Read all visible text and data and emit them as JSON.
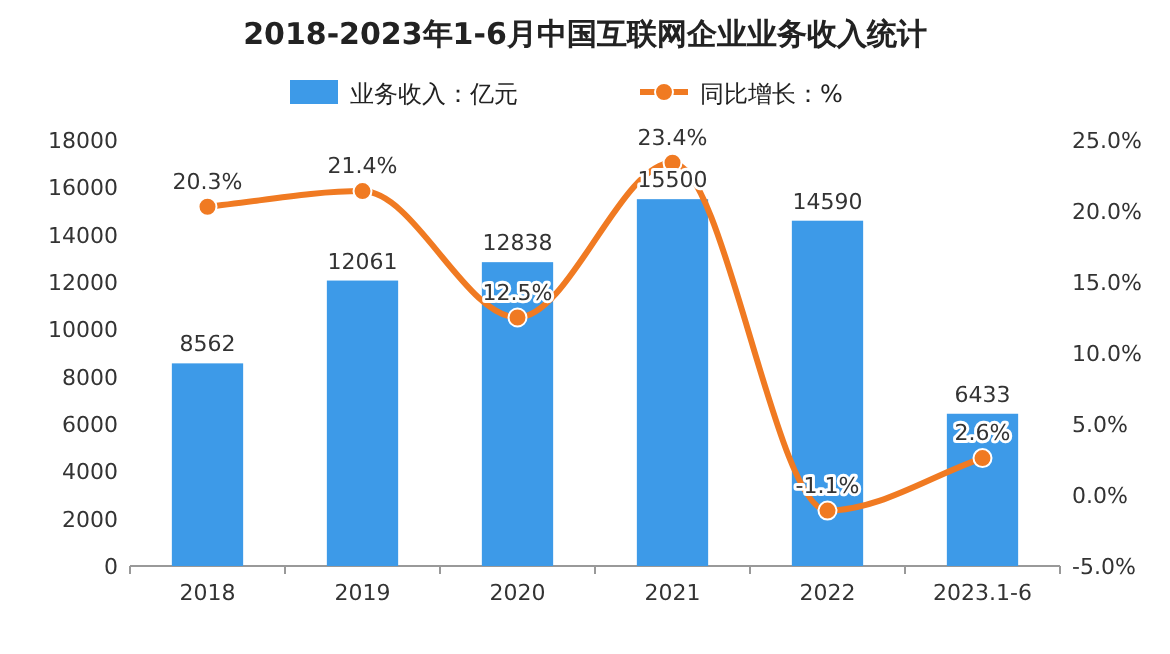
{
  "chart_data": {
    "type": "bar",
    "title": "2018-2023年1-6月中国互联网企业业务收入统计",
    "categories": [
      "2018",
      "2019",
      "2020",
      "2021",
      "2022",
      "2023.1-6"
    ],
    "series": [
      {
        "name": "业务收入：亿元",
        "color": "#3d9ae8",
        "values": [
          8562,
          12061,
          12838,
          15500,
          14590,
          6433
        ],
        "value_labels": [
          "8562",
          "12061",
          "12838",
          "15500",
          "14590",
          "6433"
        ]
      },
      {
        "name": "同比增长：%",
        "type": "line",
        "axis": "y2",
        "color": "#f07a22",
        "marker": "circle",
        "values": [
          20.3,
          21.4,
          12.5,
          23.4,
          -1.1,
          2.6
        ],
        "value_labels": [
          "20.3%",
          "21.4%",
          "12.5%",
          "23.4%",
          "-1.1%",
          "2.6%"
        ]
      }
    ],
    "ylim": [
      0,
      18000
    ],
    "yticks": [
      0,
      2000,
      4000,
      6000,
      8000,
      10000,
      12000,
      14000,
      16000,
      18000
    ],
    "y2lim": [
      -5,
      25
    ],
    "y2ticks": [
      {
        "value": -5,
        "label": "-5.0%"
      },
      {
        "value": 0,
        "label": "0.0%"
      },
      {
        "value": 5,
        "label": "5.0%"
      },
      {
        "value": 10,
        "label": "10.0%"
      },
      {
        "value": 15,
        "label": "15.0%"
      },
      {
        "value": 20,
        "label": "20.0%"
      },
      {
        "value": 25,
        "label": "25.0%"
      }
    ],
    "legend": "top",
    "grid": false
  }
}
